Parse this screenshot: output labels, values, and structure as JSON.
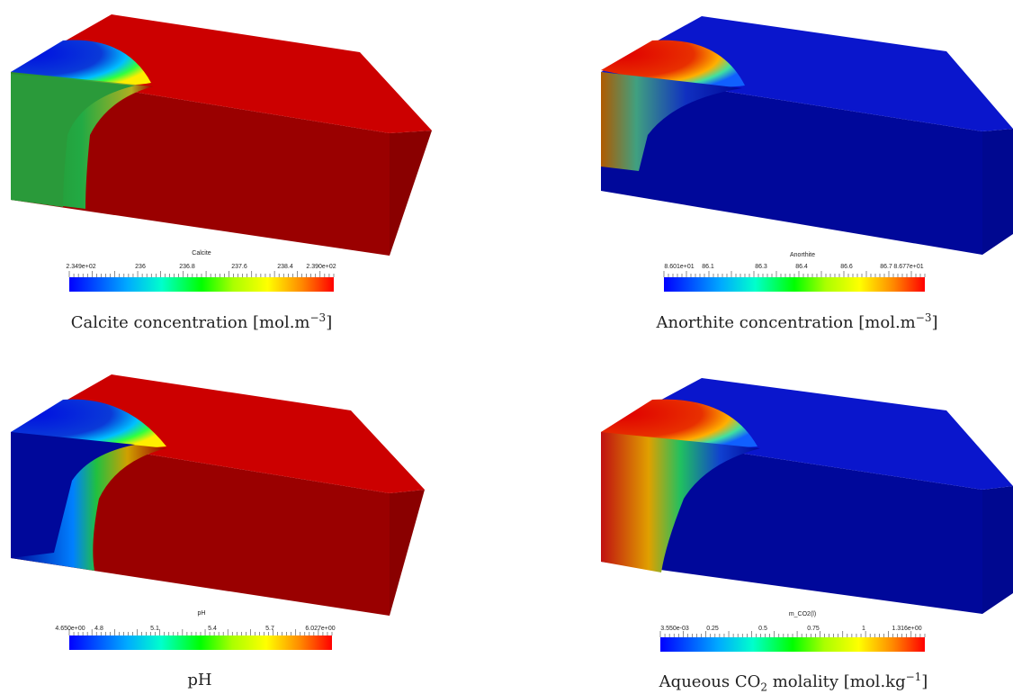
{
  "panels": [
    {
      "key": "calcite",
      "cb_title": "Calcite",
      "ticks": [
        "2.349e+02",
        "236",
        "236.8",
        "237.6",
        "238.4",
        "2.390e+02"
      ],
      "caption_main": "Calcite concentration [mol.m",
      "caption_sup": "−3",
      "caption_end": "]"
    },
    {
      "key": "anorthite",
      "cb_title": "Anorthite",
      "ticks": [
        "8.601e+01",
        "86.1",
        "86.3",
        "86.4",
        "86.6",
        "86.7",
        "8.677e+01"
      ],
      "caption_main": "Anorthite concentration [mol.m",
      "caption_sup": "−3",
      "caption_end": "]"
    },
    {
      "key": "ph",
      "cb_title": "pH",
      "ticks": [
        "4.650e+00",
        "4.8",
        "5.1",
        "5.4",
        "5.7",
        "6.027e+00"
      ],
      "caption_main": "pH"
    },
    {
      "key": "co2",
      "cb_title": "m_CO2(l)",
      "ticks": [
        "3.550e-03",
        "0.25",
        "0.5",
        "0.75",
        "1",
        "1.316e+00"
      ],
      "caption_main": "Aqueous CO",
      "caption_sub": "2",
      "caption_mid": " molality [mol.kg",
      "caption_sup": "−1",
      "caption_end": "]"
    }
  ],
  "colors": {
    "high_top": "#cc0000",
    "high_front": "#9a0000",
    "low_top": "#0a16cc",
    "low_front": "#00089a"
  }
}
